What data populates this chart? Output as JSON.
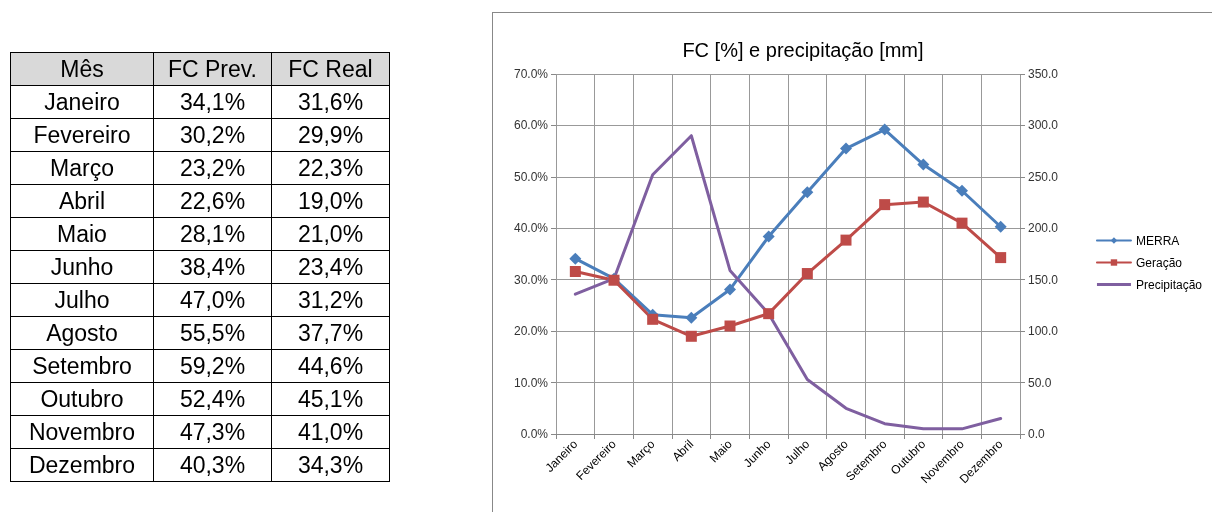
{
  "chart_data": [
    {
      "type": "other",
      "annotations": [
        "Mês",
        "FC Prev.",
        "FC Real",
        "Janeiro",
        "34,1%",
        "31,6%",
        "Fevereiro",
        "30,2%",
        "29,9%",
        "Março",
        "23,2%",
        "22,3%",
        "Abril",
        "22,6%",
        "19,0%",
        "Maio",
        "28,1%",
        "21,0%",
        "Junho",
        "38,4%",
        "23,4%",
        "Julho",
        "47,0%",
        "31,2%",
        "Agosto",
        "55,5%",
        "37,7%",
        "Setembro",
        "59,2%",
        "44,6%",
        "Outubro",
        "52,4%",
        "45,1%",
        "Novembro",
        "47,3%",
        "41,0%",
        "Dezembro",
        "40,3%",
        "34,3%"
      ]
    },
    {
      "type": "line",
      "title": "FC [%] e precipitação [mm]",
      "categories": [
        "Janeiro",
        "Fevereiro",
        "Março",
        "Abril",
        "Maio",
        "Junho",
        "Julho",
        "Agosto",
        "Setembro",
        "Outubro",
        "Novembro",
        "Dezembro"
      ],
      "series": [
        {
          "name": "MERRA",
          "color": "#4a7ebb",
          "marker": "diamond",
          "values": [
            34.1,
            30.2,
            23.2,
            22.6,
            28.1,
            38.4,
            47.0,
            55.5,
            59.2,
            52.4,
            47.3,
            40.3
          ]
        },
        {
          "name": "Geração",
          "color": "#be4b48",
          "marker": "square",
          "values": [
            31.6,
            29.9,
            22.3,
            19.0,
            21.0,
            23.4,
            31.2,
            37.7,
            44.6,
            45.1,
            41.0,
            34.3
          ]
        },
        {
          "name": "Precipitação",
          "color": "#7f5fa0",
          "marker": "none",
          "axis": "y2",
          "values": [
            136,
            151,
            252,
            290,
            159,
            117,
            53,
            25,
            10,
            5,
            5,
            15
          ]
        }
      ],
      "ylim": [
        0,
        70
      ],
      "yticks": [
        {
          "value": 0,
          "label": "0.0%"
        },
        {
          "value": 10,
          "label": "10.0%"
        },
        {
          "value": 20,
          "label": "20.0%"
        },
        {
          "value": 30,
          "label": "30.0%"
        },
        {
          "value": 40,
          "label": "40.0%"
        },
        {
          "value": 50,
          "label": "50.0%"
        },
        {
          "value": 60,
          "label": "60.0%"
        },
        {
          "value": 70,
          "label": "70.0%"
        }
      ],
      "y2lim": [
        0,
        350
      ],
      "y2ticks": [
        {
          "value": 0,
          "label": "0.0"
        },
        {
          "value": 50,
          "label": "50.0"
        },
        {
          "value": 100,
          "label": "100.0"
        },
        {
          "value": 150,
          "label": "150.0"
        },
        {
          "value": 200,
          "label": "200.0"
        },
        {
          "value": 250,
          "label": "250.0"
        },
        {
          "value": 300,
          "label": "300.0"
        },
        {
          "value": 350,
          "label": "350.0"
        }
      ],
      "grid": true,
      "legend": "right",
      "line_style": "solid"
    }
  ]
}
